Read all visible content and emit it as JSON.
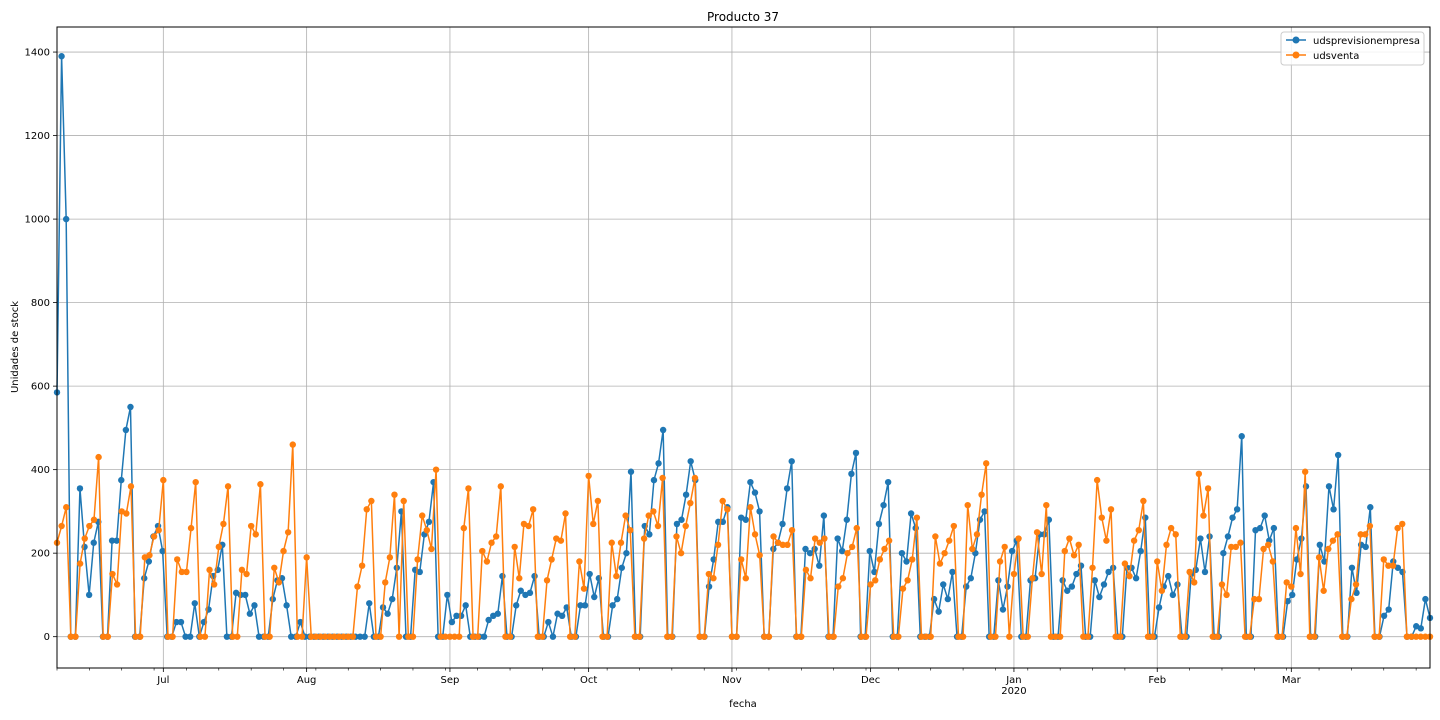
{
  "chart_data": {
    "type": "line",
    "title": "Producto 37",
    "xlabel": "fecha",
    "ylabel": "Unidades de stock",
    "ylim": [
      -75,
      1460
    ],
    "yticks": [
      0,
      200,
      400,
      600,
      800,
      1000,
      1200,
      1400
    ],
    "grid": true,
    "legend_position": "top-right",
    "x_start": "2019-06-08",
    "x_end": "2020-03-31",
    "x_tick_labels": [
      {
        "date": "2019-07-01",
        "label": "Jul"
      },
      {
        "date": "2019-08-01",
        "label": "Aug"
      },
      {
        "date": "2019-09-01",
        "label": "Sep"
      },
      {
        "date": "2019-10-01",
        "label": "Oct"
      },
      {
        "date": "2019-11-01",
        "label": "Nov"
      },
      {
        "date": "2019-12-01",
        "label": "Dec"
      },
      {
        "date": "2020-01-01",
        "label": "Jan",
        "sublabel": "2020"
      },
      {
        "date": "2020-02-01",
        "label": "Feb"
      },
      {
        "date": "2020-03-01",
        "label": "Mar"
      }
    ],
    "series": [
      {
        "name": "udsprevisionempresa",
        "color": "#1f77b4",
        "values": [
          585,
          1390,
          1000,
          0,
          0,
          355,
          215,
          100,
          225,
          275,
          0,
          0,
          230,
          230,
          375,
          495,
          550,
          0,
          0,
          140,
          180,
          240,
          265,
          205,
          0,
          0,
          35,
          35,
          0,
          0,
          80,
          0,
          35,
          65,
          145,
          160,
          220,
          0,
          0,
          105,
          100,
          100,
          55,
          75,
          0,
          0,
          0,
          90,
          135,
          140,
          75,
          0,
          0,
          35,
          0,
          0,
          0,
          0,
          0,
          0,
          0,
          0,
          0,
          0,
          0,
          0,
          0,
          0,
          80,
          0,
          0,
          70,
          55,
          90,
          165,
          300,
          0,
          0,
          160,
          155,
          245,
          275,
          370,
          0,
          0,
          100,
          35,
          50,
          50,
          75,
          0,
          0,
          0,
          0,
          40,
          50,
          55,
          145,
          0,
          0,
          75,
          110,
          100,
          105,
          145,
          0,
          0,
          35,
          0,
          55,
          50,
          70,
          0,
          0,
          75,
          75,
          150,
          95,
          140,
          0,
          0,
          75,
          90,
          165,
          200,
          395,
          0,
          0,
          265,
          245,
          375,
          415,
          495,
          0,
          0,
          270,
          280,
          340,
          420,
          375,
          0,
          0,
          120,
          185,
          275,
          275,
          310,
          0,
          0,
          285,
          280,
          370,
          345,
          300,
          0,
          0,
          210,
          225,
          270,
          355,
          420,
          0,
          0,
          210,
          200,
          210,
          170,
          290,
          0,
          0,
          235,
          205,
          280,
          390,
          440,
          0,
          0,
          205,
          155,
          270,
          315,
          370,
          0,
          0,
          200,
          180,
          295,
          260,
          0,
          0,
          0,
          90,
          60,
          125,
          90,
          155,
          0,
          0,
          120,
          140,
          200,
          280,
          300,
          0,
          0,
          135,
          65,
          120,
          205,
          230,
          0,
          0,
          135,
          140,
          245,
          245,
          280,
          0,
          0,
          135,
          110,
          120,
          150,
          170,
          0,
          0,
          135,
          95,
          125,
          155,
          165,
          0,
          0,
          165,
          165,
          140,
          205,
          285,
          0,
          0,
          70,
          120,
          145,
          100,
          125,
          0,
          0,
          150,
          160,
          235,
          155,
          240,
          0,
          0,
          200,
          240,
          285,
          305,
          480,
          0,
          0,
          255,
          260,
          290,
          230,
          260,
          0,
          0,
          85,
          100,
          185,
          235,
          360,
          0,
          0,
          220,
          180,
          360,
          305,
          435,
          0,
          0,
          165,
          105,
          220,
          215,
          310,
          0,
          0,
          50,
          65,
          180,
          165,
          155,
          0,
          0,
          25,
          20,
          90,
          45
        ]
      },
      {
        "name": "udsventa",
        "color": "#ff7f0e",
        "values": [
          225,
          265,
          310,
          0,
          0,
          175,
          235,
          265,
          280,
          430,
          0,
          0,
          150,
          125,
          300,
          295,
          360,
          0,
          0,
          190,
          195,
          240,
          255,
          375,
          0,
          0,
          185,
          155,
          155,
          260,
          370,
          0,
          0,
          160,
          125,
          215,
          270,
          360,
          0,
          0,
          160,
          150,
          265,
          245,
          365,
          0,
          0,
          165,
          130,
          205,
          250,
          460,
          0,
          0,
          190,
          0,
          0,
          0,
          0,
          0,
          0,
          0,
          0,
          0,
          0,
          120,
          170,
          305,
          325,
          0,
          0,
          130,
          190,
          340,
          0,
          325,
          0,
          0,
          185,
          290,
          255,
          210,
          400,
          0,
          0,
          0,
          0,
          0,
          260,
          355,
          0,
          0,
          205,
          180,
          225,
          240,
          360,
          0,
          0,
          215,
          140,
          270,
          265,
          305,
          0,
          0,
          135,
          185,
          235,
          230,
          295,
          0,
          0,
          180,
          115,
          385,
          270,
          325,
          0,
          0,
          225,
          145,
          225,
          290,
          255,
          0,
          0,
          235,
          290,
          300,
          265,
          380,
          0,
          0,
          240,
          200,
          265,
          320,
          380,
          0,
          0,
          150,
          140,
          220,
          325,
          305,
          0,
          0,
          185,
          140,
          310,
          245,
          195,
          0,
          0,
          240,
          225,
          220,
          220,
          255,
          0,
          0,
          160,
          140,
          235,
          225,
          235,
          0,
          0,
          120,
          140,
          200,
          215,
          260,
          0,
          0,
          125,
          135,
          185,
          210,
          230,
          0,
          0,
          115,
          135,
          185,
          285,
          0,
          0,
          0,
          240,
          175,
          200,
          230,
          265,
          0,
          0,
          315,
          210,
          245,
          340,
          415,
          0,
          0,
          180,
          215,
          0,
          150,
          235,
          0,
          0,
          140,
          250,
          150,
          315,
          0,
          0,
          0,
          205,
          235,
          195,
          220,
          0,
          0,
          165,
          375,
          285,
          230,
          305,
          0,
          0,
          175,
          145,
          230,
          255,
          325,
          0,
          0,
          180,
          110,
          220,
          260,
          245,
          0,
          0,
          155,
          130,
          390,
          290,
          355,
          0,
          0,
          125,
          100,
          215,
          215,
          225,
          0,
          0,
          90,
          90,
          210,
          220,
          180,
          0,
          0,
          130,
          120,
          260,
          150,
          395,
          0,
          0,
          190,
          110,
          210,
          230,
          245,
          0,
          0,
          90,
          125,
          245,
          245,
          265,
          0,
          0,
          185,
          170,
          170,
          260,
          270,
          0,
          0,
          0,
          0,
          0,
          0
        ]
      }
    ]
  }
}
